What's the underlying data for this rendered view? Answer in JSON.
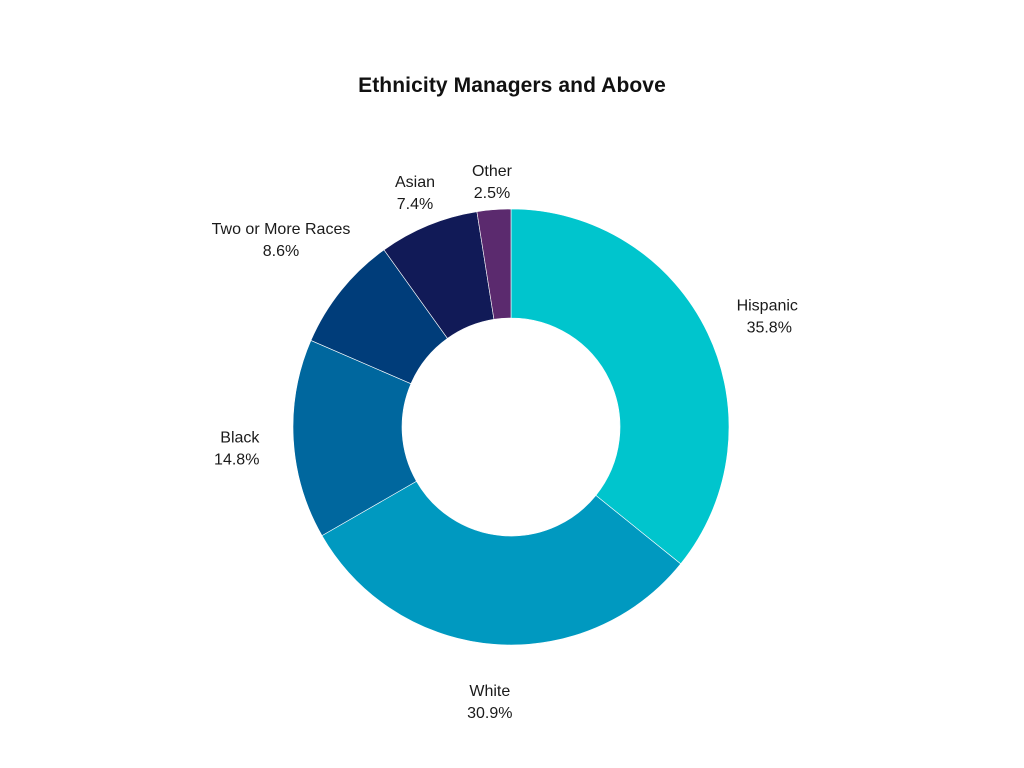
{
  "chart_data": {
    "type": "pie",
    "title": "Ethnicity Managers and Above",
    "donut": true,
    "categories": [
      "Hispanic",
      "White",
      "Black",
      "Two or More Races",
      "Asian",
      "Other"
    ],
    "values": [
      35.8,
      30.9,
      14.8,
      8.6,
      7.4,
      2.5
    ],
    "value_labels": [
      "35.8%",
      "30.9%",
      "14.8%",
      "8.6%",
      "7.4%",
      "2.5%"
    ],
    "colors": [
      "#00c5cd",
      "#0099c0",
      "#00679e",
      "#003d7a",
      "#111a57",
      "#5b2a6e"
    ],
    "legend": "none"
  }
}
